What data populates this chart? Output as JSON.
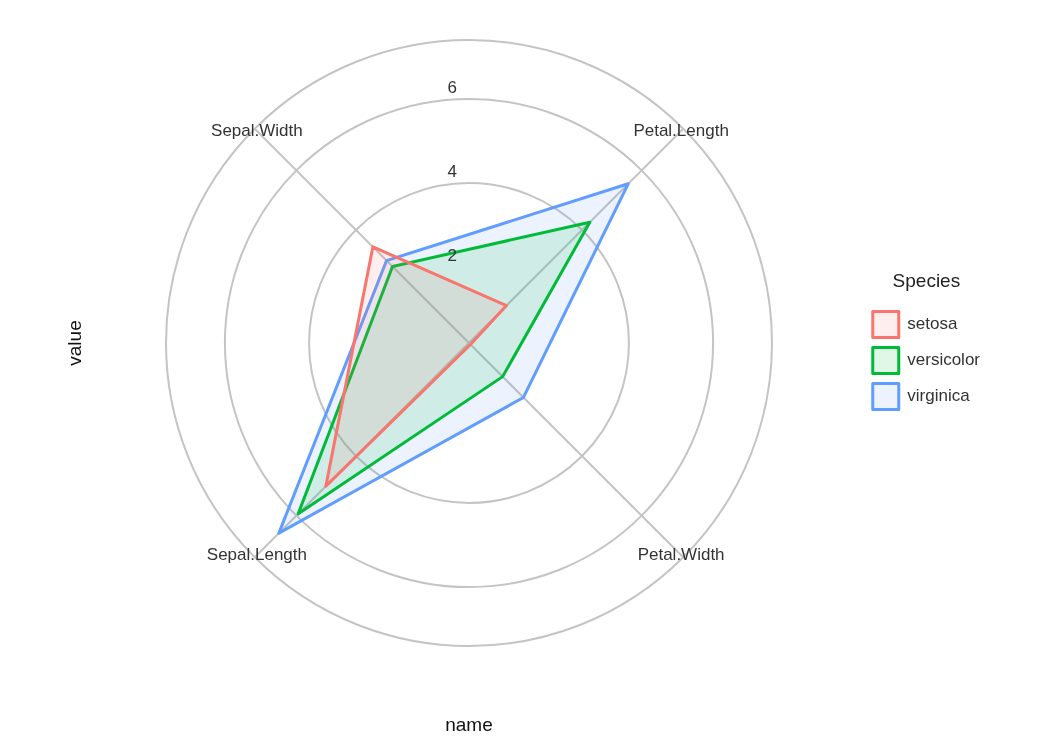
{
  "chart_data": {
    "type": "radar",
    "xlabel": "name",
    "ylabel": "value",
    "legend_title": "Species",
    "legend": "right",
    "grid": true,
    "categories": [
      "Petal.Length",
      "Petal.Width",
      "Sepal.Length",
      "Sepal.Width"
    ],
    "ylim": [
      0.2,
      7.4
    ],
    "yticks": [
      2,
      4,
      6
    ],
    "series": [
      {
        "name": "setosa",
        "color": "#f8766d",
        "values": [
          1.46,
          0.25,
          5.01,
          3.43
        ]
      },
      {
        "name": "versicolor",
        "color": "#00ba38",
        "values": [
          4.26,
          1.33,
          5.94,
          2.77
        ]
      },
      {
        "name": "virginica",
        "color": "#619cff",
        "values": [
          5.55,
          2.03,
          6.59,
          2.97
        ]
      }
    ]
  }
}
